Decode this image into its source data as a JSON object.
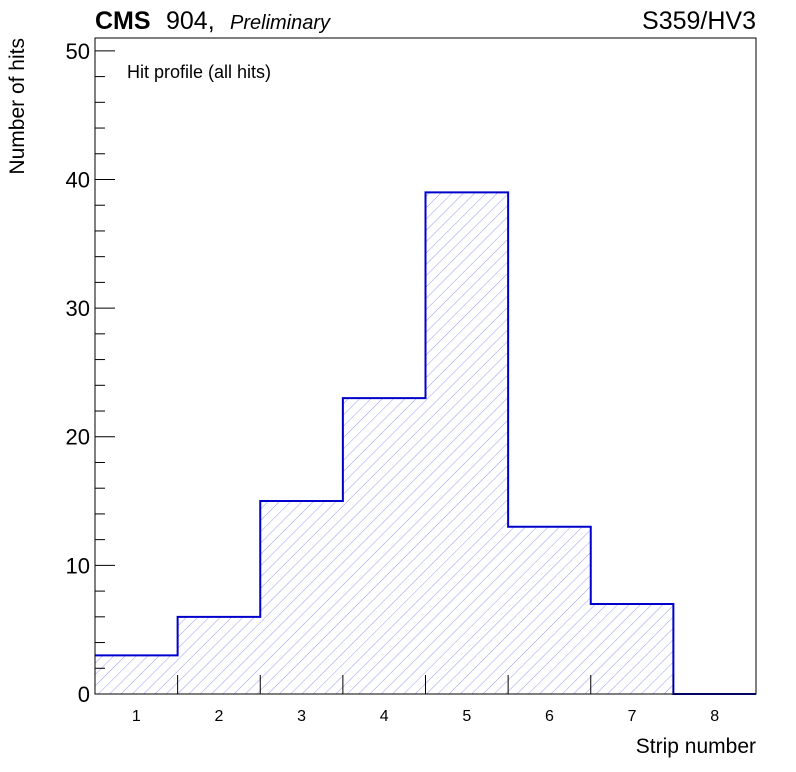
{
  "header": {
    "cms": "CMS",
    "site": "904,",
    "status": "Preliminary",
    "run_label": "S359/HV3"
  },
  "chart_data": {
    "type": "bar",
    "style": "step-histogram",
    "annotation": "Hit profile (all hits)",
    "xlabel": "Strip number",
    "ylabel": "Number of hits",
    "categories": [
      "1",
      "2",
      "3",
      "4",
      "5",
      "6",
      "7",
      "8"
    ],
    "values": [
      3,
      6,
      15,
      23,
      39,
      13,
      7,
      0
    ],
    "xlim": [
      0.5,
      8.5
    ],
    "ylim": [
      0,
      51
    ],
    "y_major_ticks": [
      0,
      10,
      20,
      30,
      40,
      50
    ],
    "y_minor_step": 2,
    "line_color": "#0000cc",
    "hatch_color": "#8f8fef",
    "grid": false
  }
}
